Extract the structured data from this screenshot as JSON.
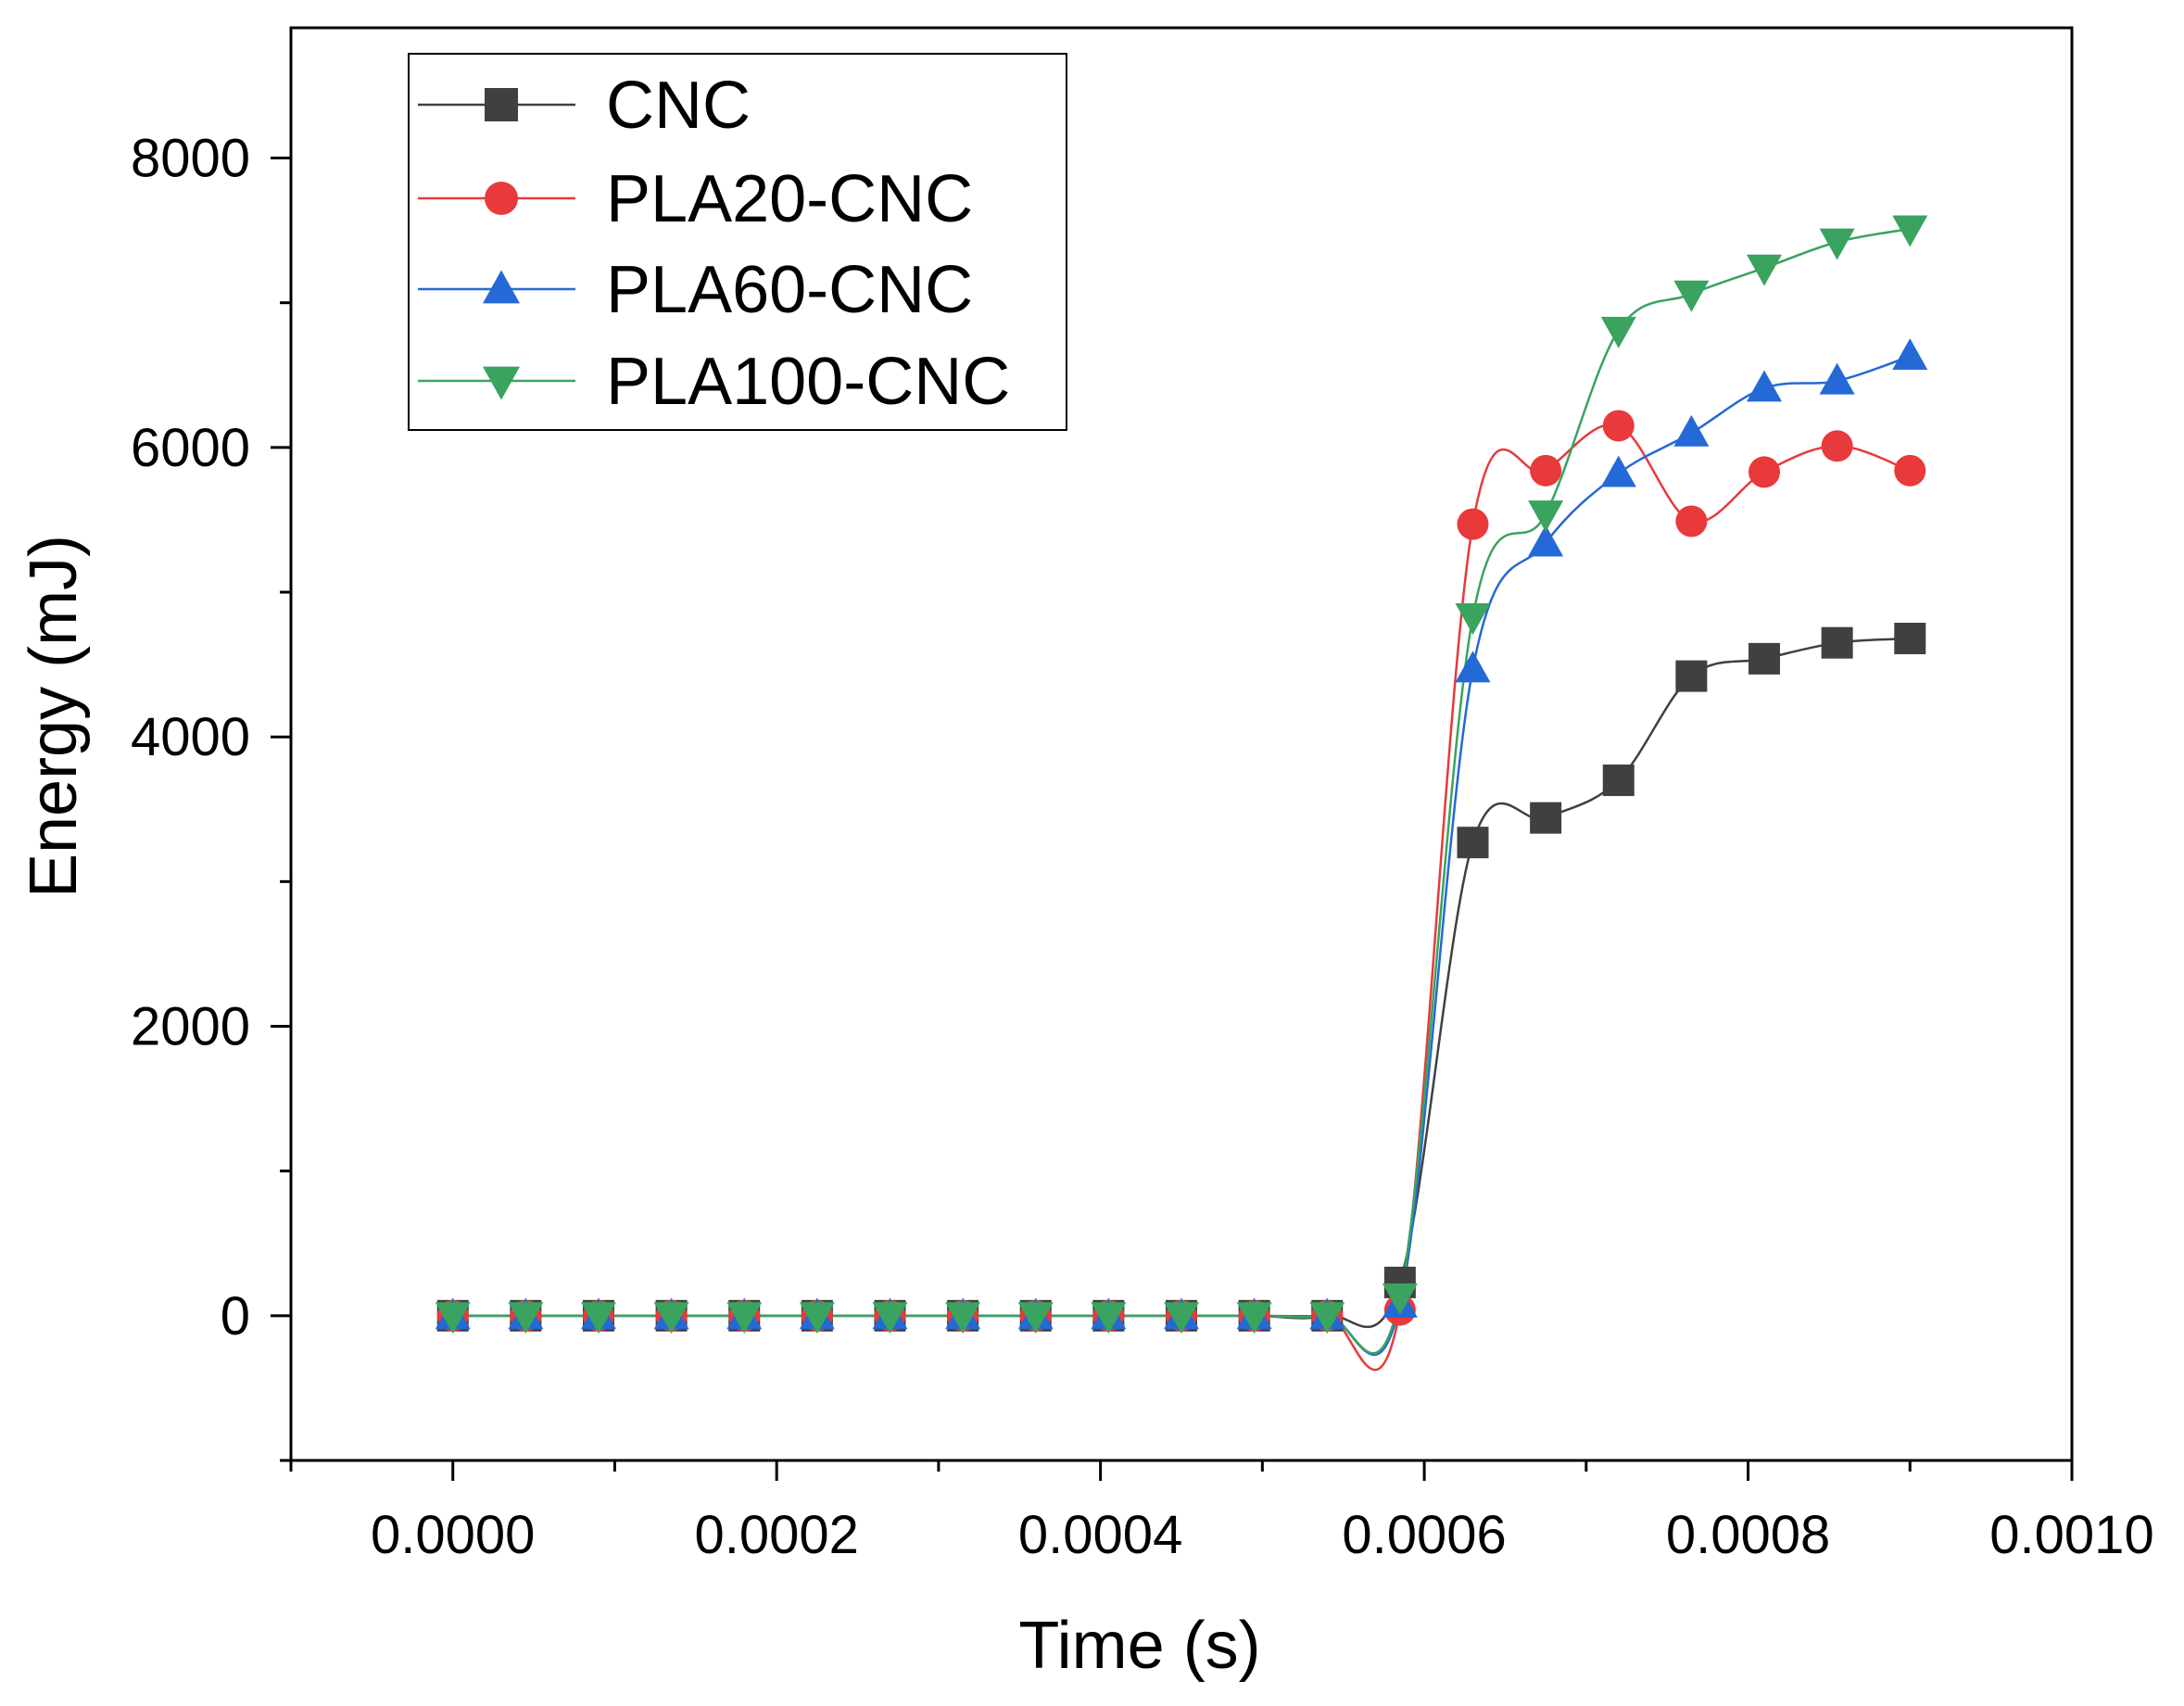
{
  "chart_data": {
    "type": "line",
    "xlabel": "Time (s)",
    "ylabel": "Energy (mJ)",
    "xlim": [
      -0.0001,
      0.001
    ],
    "ylim": [
      -1000,
      8900
    ],
    "x_ticks": [
      0.0,
      0.0002,
      0.0004,
      0.0006,
      0.0008,
      0.001
    ],
    "x_tick_labels": [
      "0.0000",
      "0.0002",
      "0.0004",
      "0.0006",
      "0.0008",
      "0.0010"
    ],
    "y_ticks": [
      0,
      2000,
      4000,
      6000,
      8000
    ],
    "y_tick_labels": [
      "0",
      "2000",
      "4000",
      "6000",
      "8000"
    ],
    "grid": false,
    "legend_position": "top-left",
    "x": [
      0.0,
      4.5e-05,
      9e-05,
      0.000135,
      0.00018,
      0.000225,
      0.00027,
      0.000315,
      0.00036,
      0.000405,
      0.00045,
      0.000495,
      0.00054,
      0.000585,
      0.00063,
      0.000675,
      0.00072,
      0.000765,
      0.00081,
      0.000855,
      0.0009
    ],
    "series": [
      {
        "name": "CNC",
        "color": "#404040",
        "marker": "square",
        "values": [
          0,
          0,
          0,
          0,
          0,
          0,
          0,
          0,
          0,
          0,
          0,
          0,
          0,
          230,
          3270,
          3440,
          3700,
          4420,
          4540,
          4650,
          4680
        ]
      },
      {
        "name": "PLA20-CNC",
        "color": "#e8393b",
        "marker": "circle",
        "values": [
          0,
          0,
          0,
          0,
          0,
          0,
          0,
          0,
          0,
          0,
          0,
          0,
          0,
          40,
          5470,
          5840,
          6150,
          5490,
          5830,
          6010,
          5840
        ]
      },
      {
        "name": "PLA60-CNC",
        "color": "#2469d6",
        "marker": "triangle-up",
        "values": [
          0,
          0,
          0,
          0,
          0,
          0,
          0,
          0,
          0,
          0,
          0,
          0,
          0,
          80,
          4470,
          5340,
          5820,
          6100,
          6410,
          6460,
          6630
        ]
      },
      {
        "name": "PLA100-CNC",
        "color": "#3aa35f",
        "marker": "triangle-down",
        "values": [
          0,
          0,
          0,
          0,
          0,
          0,
          0,
          0,
          0,
          0,
          0,
          0,
          0,
          130,
          4830,
          5540,
          6810,
          7060,
          7240,
          7420,
          7510
        ]
      }
    ]
  }
}
